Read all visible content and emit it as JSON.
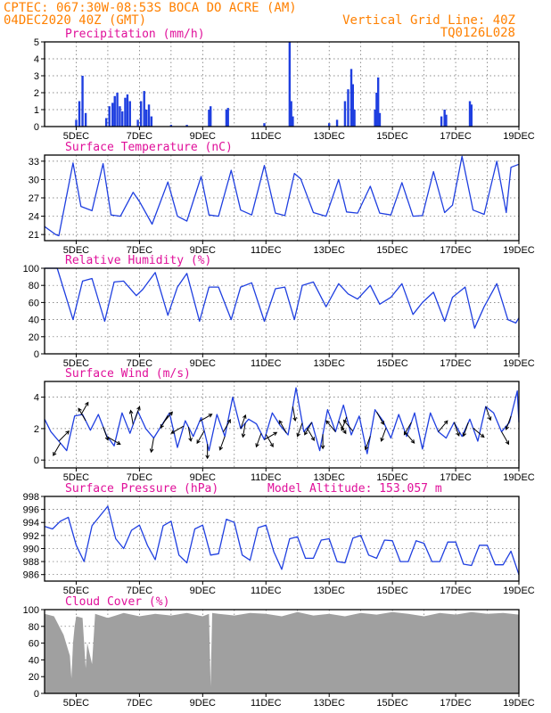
{
  "header": {
    "line1_left": "CPTEC:   067:30W-08:53S  BOCA DO ACRE (AM)",
    "line2_left": "04DEC2020 40Z (GMT)",
    "line2_right": "Vertical Grid Line: 40Z",
    "line3_right": "TQ0126L028"
  },
  "colors": {
    "header": "#ff8000",
    "title": "#e0109a",
    "line": "#1f3fe0",
    "cloud": "#a0a0a0",
    "wind_arrow": "#000000"
  },
  "x_axis": {
    "start_day": 4,
    "end_day": 19,
    "labels": [
      "5DEC",
      "7DEC",
      "9DEC",
      "11DEC",
      "13DEC",
      "15DEC",
      "17DEC",
      "19DEC"
    ],
    "label_days": [
      5,
      7,
      9,
      11,
      13,
      15,
      17,
      19
    ]
  },
  "chart_data": [
    {
      "type": "bar",
      "title": "Precipitation (mm/h)",
      "ylim": [
        0,
        5
      ],
      "yticks": [
        0,
        1,
        2,
        3,
        4,
        5
      ],
      "bars": [
        {
          "t": 5.0,
          "v": 0.4
        },
        {
          "t": 5.1,
          "v": 1.5
        },
        {
          "t": 5.2,
          "v": 3.0
        },
        {
          "t": 5.3,
          "v": 0.8
        },
        {
          "t": 5.95,
          "v": 0.5
        },
        {
          "t": 6.05,
          "v": 1.2
        },
        {
          "t": 6.15,
          "v": 1.4
        },
        {
          "t": 6.22,
          "v": 1.8
        },
        {
          "t": 6.3,
          "v": 2.0
        },
        {
          "t": 6.38,
          "v": 1.2
        },
        {
          "t": 6.46,
          "v": 0.9
        },
        {
          "t": 6.55,
          "v": 1.7
        },
        {
          "t": 6.62,
          "v": 1.9
        },
        {
          "t": 6.7,
          "v": 1.5
        },
        {
          "t": 6.95,
          "v": 0.4
        },
        {
          "t": 7.05,
          "v": 1.5
        },
        {
          "t": 7.15,
          "v": 2.1
        },
        {
          "t": 7.22,
          "v": 1.0
        },
        {
          "t": 7.3,
          "v": 1.3
        },
        {
          "t": 7.38,
          "v": 0.6
        },
        {
          "t": 8.0,
          "v": 0.1
        },
        {
          "t": 8.5,
          "v": 0.1
        },
        {
          "t": 9.2,
          "v": 1.0
        },
        {
          "t": 9.25,
          "v": 1.2
        },
        {
          "t": 9.75,
          "v": 1.0
        },
        {
          "t": 9.8,
          "v": 1.1
        },
        {
          "t": 10.95,
          "v": 0.2
        },
        {
          "t": 11.75,
          "v": 5.0
        },
        {
          "t": 11.8,
          "v": 1.5
        },
        {
          "t": 11.85,
          "v": 0.6
        },
        {
          "t": 13.0,
          "v": 0.2
        },
        {
          "t": 13.25,
          "v": 0.4
        },
        {
          "t": 13.5,
          "v": 1.5
        },
        {
          "t": 13.6,
          "v": 2.2
        },
        {
          "t": 13.7,
          "v": 3.4
        },
        {
          "t": 13.75,
          "v": 2.5
        },
        {
          "t": 13.8,
          "v": 1.0
        },
        {
          "t": 14.45,
          "v": 1.0
        },
        {
          "t": 14.5,
          "v": 2.0
        },
        {
          "t": 14.55,
          "v": 2.9
        },
        {
          "t": 14.6,
          "v": 0.8
        },
        {
          "t": 16.55,
          "v": 0.6
        },
        {
          "t": 16.65,
          "v": 1.0
        },
        {
          "t": 16.7,
          "v": 0.7
        },
        {
          "t": 17.45,
          "v": 1.5
        },
        {
          "t": 17.5,
          "v": 1.3
        }
      ]
    },
    {
      "type": "line",
      "title": "Surface Temperature (nC)",
      "ylim": [
        20,
        34
      ],
      "yticks": [
        21,
        24,
        27,
        30,
        33
      ],
      "x": [
        4.0,
        4.35,
        4.45,
        4.9,
        5.15,
        5.5,
        5.85,
        6.1,
        6.4,
        6.8,
        7.0,
        7.4,
        7.9,
        8.2,
        8.5,
        8.95,
        9.2,
        9.5,
        9.9,
        10.2,
        10.55,
        10.95,
        11.3,
        11.6,
        11.9,
        12.1,
        12.5,
        12.9,
        13.3,
        13.55,
        13.9,
        14.3,
        14.6,
        14.95,
        15.3,
        15.65,
        15.95,
        16.3,
        16.65,
        16.9,
        17.2,
        17.55,
        17.9,
        18.3,
        18.6,
        18.75,
        19.0
      ],
      "y": [
        22.3,
        21.0,
        20.8,
        32.7,
        25.6,
        24.9,
        32.6,
        24.2,
        24.0,
        27.9,
        26.4,
        22.7,
        29.6,
        24.0,
        23.2,
        30.5,
        24.2,
        24.0,
        31.5,
        25.0,
        24.2,
        32.3,
        24.5,
        24.1,
        31.0,
        30.1,
        24.6,
        24.0,
        30.0,
        24.7,
        24.5,
        28.9,
        24.5,
        24.2,
        29.5,
        24.0,
        24.1,
        31.3,
        24.6,
        25.8,
        33.8,
        25.0,
        24.3,
        33.0,
        24.6,
        32.0,
        32.5
      ]
    },
    {
      "type": "line",
      "title": "Relative Humidity (%)",
      "ylim": [
        0,
        100
      ],
      "yticks": [
        0,
        20,
        40,
        60,
        80,
        100
      ],
      "x": [
        4.0,
        4.4,
        4.9,
        5.2,
        5.5,
        5.9,
        6.2,
        6.5,
        6.9,
        7.1,
        7.5,
        7.9,
        8.2,
        8.5,
        8.9,
        9.2,
        9.5,
        9.9,
        10.2,
        10.55,
        10.95,
        11.3,
        11.6,
        11.9,
        12.15,
        12.5,
        12.9,
        13.3,
        13.6,
        13.9,
        14.3,
        14.6,
        14.95,
        15.3,
        15.65,
        15.95,
        16.3,
        16.65,
        16.9,
        17.3,
        17.6,
        17.9,
        18.3,
        18.65,
        18.9,
        19.0
      ],
      "y": [
        100,
        100,
        40,
        85,
        88,
        38,
        84,
        85,
        68,
        75,
        95,
        45,
        78,
        94,
        38,
        78,
        78,
        40,
        78,
        83,
        38,
        76,
        78,
        40,
        80,
        84,
        55,
        82,
        70,
        64,
        80,
        58,
        66,
        82,
        46,
        60,
        72,
        38,
        66,
        78,
        30,
        55,
        82,
        40,
        36,
        42
      ]
    },
    {
      "type": "line",
      "title": "Surface Wind (m/s)",
      "ylim": [
        -0.5,
        5
      ],
      "yticks": [
        0,
        2,
        4
      ],
      "x": [
        4.0,
        4.2,
        4.45,
        4.7,
        4.95,
        5.2,
        5.45,
        5.7,
        5.95,
        6.2,
        6.45,
        6.7,
        6.95,
        7.2,
        7.45,
        7.7,
        7.95,
        8.2,
        8.45,
        8.7,
        8.95,
        9.2,
        9.45,
        9.7,
        9.95,
        10.2,
        10.45,
        10.7,
        10.95,
        11.2,
        11.45,
        11.7,
        11.95,
        12.2,
        12.45,
        12.7,
        12.95,
        13.2,
        13.45,
        13.7,
        13.95,
        14.2,
        14.45,
        14.7,
        14.95,
        15.2,
        15.45,
        15.7,
        15.95,
        16.2,
        16.45,
        16.7,
        16.95,
        17.2,
        17.45,
        17.7,
        17.95,
        18.2,
        18.45,
        18.7,
        18.95,
        19.0
      ],
      "y": [
        2.6,
        1.8,
        1.2,
        0.6,
        2.8,
        2.9,
        1.9,
        2.9,
        1.6,
        0.9,
        3.0,
        1.7,
        3.1,
        2.0,
        1.4,
        2.2,
        3.0,
        0.8,
        2.5,
        1.5,
        2.7,
        0.6,
        2.9,
        1.5,
        4.0,
        2.0,
        2.6,
        2.3,
        1.3,
        3.0,
        2.2,
        1.6,
        4.6,
        1.8,
        2.4,
        0.6,
        3.2,
        1.8,
        3.5,
        1.6,
        2.8,
        0.4,
        3.2,
        2.5,
        1.4,
        2.9,
        1.5,
        3.0,
        0.7,
        3.0,
        1.8,
        1.4,
        2.4,
        1.5,
        2.6,
        1.2,
        3.4,
        3.0,
        1.8,
        2.4,
        4.4,
        2.4
      ],
      "arrows": [
        {
          "t": 4.45,
          "dir": 45
        },
        {
          "t": 4.5,
          "dir": 210
        },
        {
          "t": 5.15,
          "dir": 30
        },
        {
          "t": 5.3,
          "dir": 330
        },
        {
          "t": 5.85,
          "dir": 160
        },
        {
          "t": 6.0,
          "dir": 120
        },
        {
          "t": 6.8,
          "dir": 350
        },
        {
          "t": 6.85,
          "dir": 20
        },
        {
          "t": 7.45,
          "dir": 190
        },
        {
          "t": 7.75,
          "dir": 40
        },
        {
          "t": 7.9,
          "dir": 210
        },
        {
          "t": 8.4,
          "dir": 240
        },
        {
          "t": 8.55,
          "dir": 170
        },
        {
          "t": 8.9,
          "dir": 60
        },
        {
          "t": 9.05,
          "dir": 210
        },
        {
          "t": 9.15,
          "dir": 180
        },
        {
          "t": 9.65,
          "dir": 30
        },
        {
          "t": 9.7,
          "dir": 200
        },
        {
          "t": 10.2,
          "dir": 20
        },
        {
          "t": 10.35,
          "dir": 190
        },
        {
          "t": 10.85,
          "dir": 200
        },
        {
          "t": 10.95,
          "dir": 60
        },
        {
          "t": 11.0,
          "dir": 150
        },
        {
          "t": 11.65,
          "dir": 330
        },
        {
          "t": 11.85,
          "dir": 170
        },
        {
          "t": 12.15,
          "dir": 200
        },
        {
          "t": 12.3,
          "dir": 150
        },
        {
          "t": 12.45,
          "dir": 210
        },
        {
          "t": 12.8,
          "dir": 180
        },
        {
          "t": 13.2,
          "dir": 320
        },
        {
          "t": 13.3,
          "dir": 150
        },
        {
          "t": 13.55,
          "dir": 200
        },
        {
          "t": 13.75,
          "dir": 320
        },
        {
          "t": 14.3,
          "dir": 200
        },
        {
          "t": 14.5,
          "dir": 150
        },
        {
          "t": 14.8,
          "dir": 200
        },
        {
          "t": 15.4,
          "dir": 140
        },
        {
          "t": 15.6,
          "dir": 210
        },
        {
          "t": 16.45,
          "dir": 40
        },
        {
          "t": 16.95,
          "dir": 160
        },
        {
          "t": 17.4,
          "dir": 200
        },
        {
          "t": 17.55,
          "dir": 130
        },
        {
          "t": 17.95,
          "dir": 160
        },
        {
          "t": 18.45,
          "dir": 150
        },
        {
          "t": 18.75,
          "dir": 200
        }
      ]
    },
    {
      "type": "line",
      "title": "Surface Pressure (hPa)",
      "annotation": "Model Altitude: 153.057 m",
      "ylim": [
        985,
        998
      ],
      "yticks": [
        986,
        988,
        990,
        992,
        994,
        996,
        998
      ],
      "x": [
        4.0,
        4.25,
        4.5,
        4.75,
        5.0,
        5.25,
        5.5,
        5.75,
        6.0,
        6.25,
        6.5,
        6.75,
        7.0,
        7.25,
        7.5,
        7.75,
        8.0,
        8.25,
        8.5,
        8.75,
        9.0,
        9.25,
        9.5,
        9.75,
        10.0,
        10.25,
        10.5,
        10.75,
        11.0,
        11.25,
        11.5,
        11.75,
        12.0,
        12.25,
        12.5,
        12.75,
        13.0,
        13.25,
        13.5,
        13.75,
        14.0,
        14.25,
        14.5,
        14.75,
        15.0,
        15.25,
        15.5,
        15.75,
        16.0,
        16.25,
        16.5,
        16.75,
        17.0,
        17.25,
        17.5,
        17.75,
        18.0,
        18.25,
        18.5,
        18.75,
        19.0
      ],
      "y": [
        993.4,
        993.0,
        994.2,
        994.8,
        990.5,
        988.0,
        993.5,
        995.0,
        996.5,
        991.5,
        990.0,
        992.8,
        993.6,
        990.5,
        988.3,
        993.5,
        994.2,
        989.0,
        987.8,
        993.0,
        993.6,
        989.0,
        989.2,
        994.5,
        994.0,
        989.0,
        988.2,
        993.2,
        993.6,
        989.5,
        986.8,
        991.5,
        991.8,
        988.5,
        988.5,
        991.3,
        991.5,
        988.0,
        987.8,
        991.6,
        992.0,
        989.0,
        988.5,
        991.3,
        991.2,
        988.0,
        988.0,
        991.2,
        990.8,
        988.0,
        988.0,
        991.0,
        991.0,
        987.6,
        987.4,
        990.5,
        990.5,
        987.5,
        987.5,
        989.6,
        986.0
      ]
    },
    {
      "type": "area",
      "title": "Cloud Cover (%)",
      "ylim": [
        0,
        100
      ],
      "yticks": [
        0,
        20,
        40,
        60,
        80,
        100
      ],
      "x": [
        4.0,
        4.3,
        4.6,
        4.8,
        4.85,
        4.9,
        4.95,
        5.0,
        5.2,
        5.3,
        5.35,
        5.5,
        5.6,
        6.0,
        6.5,
        7.0,
        7.5,
        8.0,
        8.5,
        9.0,
        9.2,
        9.25,
        9.3,
        9.5,
        10.0,
        10.5,
        11.0,
        11.5,
        12.0,
        12.5,
        13.0,
        13.5,
        14.0,
        14.5,
        15.0,
        15.5,
        16.0,
        16.5,
        17.0,
        17.5,
        18.0,
        18.5,
        19.0
      ],
      "y": [
        95,
        92,
        70,
        45,
        18,
        60,
        80,
        92,
        90,
        30,
        60,
        35,
        95,
        90,
        96,
        92,
        95,
        93,
        96,
        92,
        95,
        8,
        96,
        95,
        93,
        96,
        95,
        92,
        97,
        93,
        95,
        92,
        96,
        94,
        97,
        95,
        92,
        96,
        94,
        97,
        95,
        96,
        94
      ]
    }
  ]
}
